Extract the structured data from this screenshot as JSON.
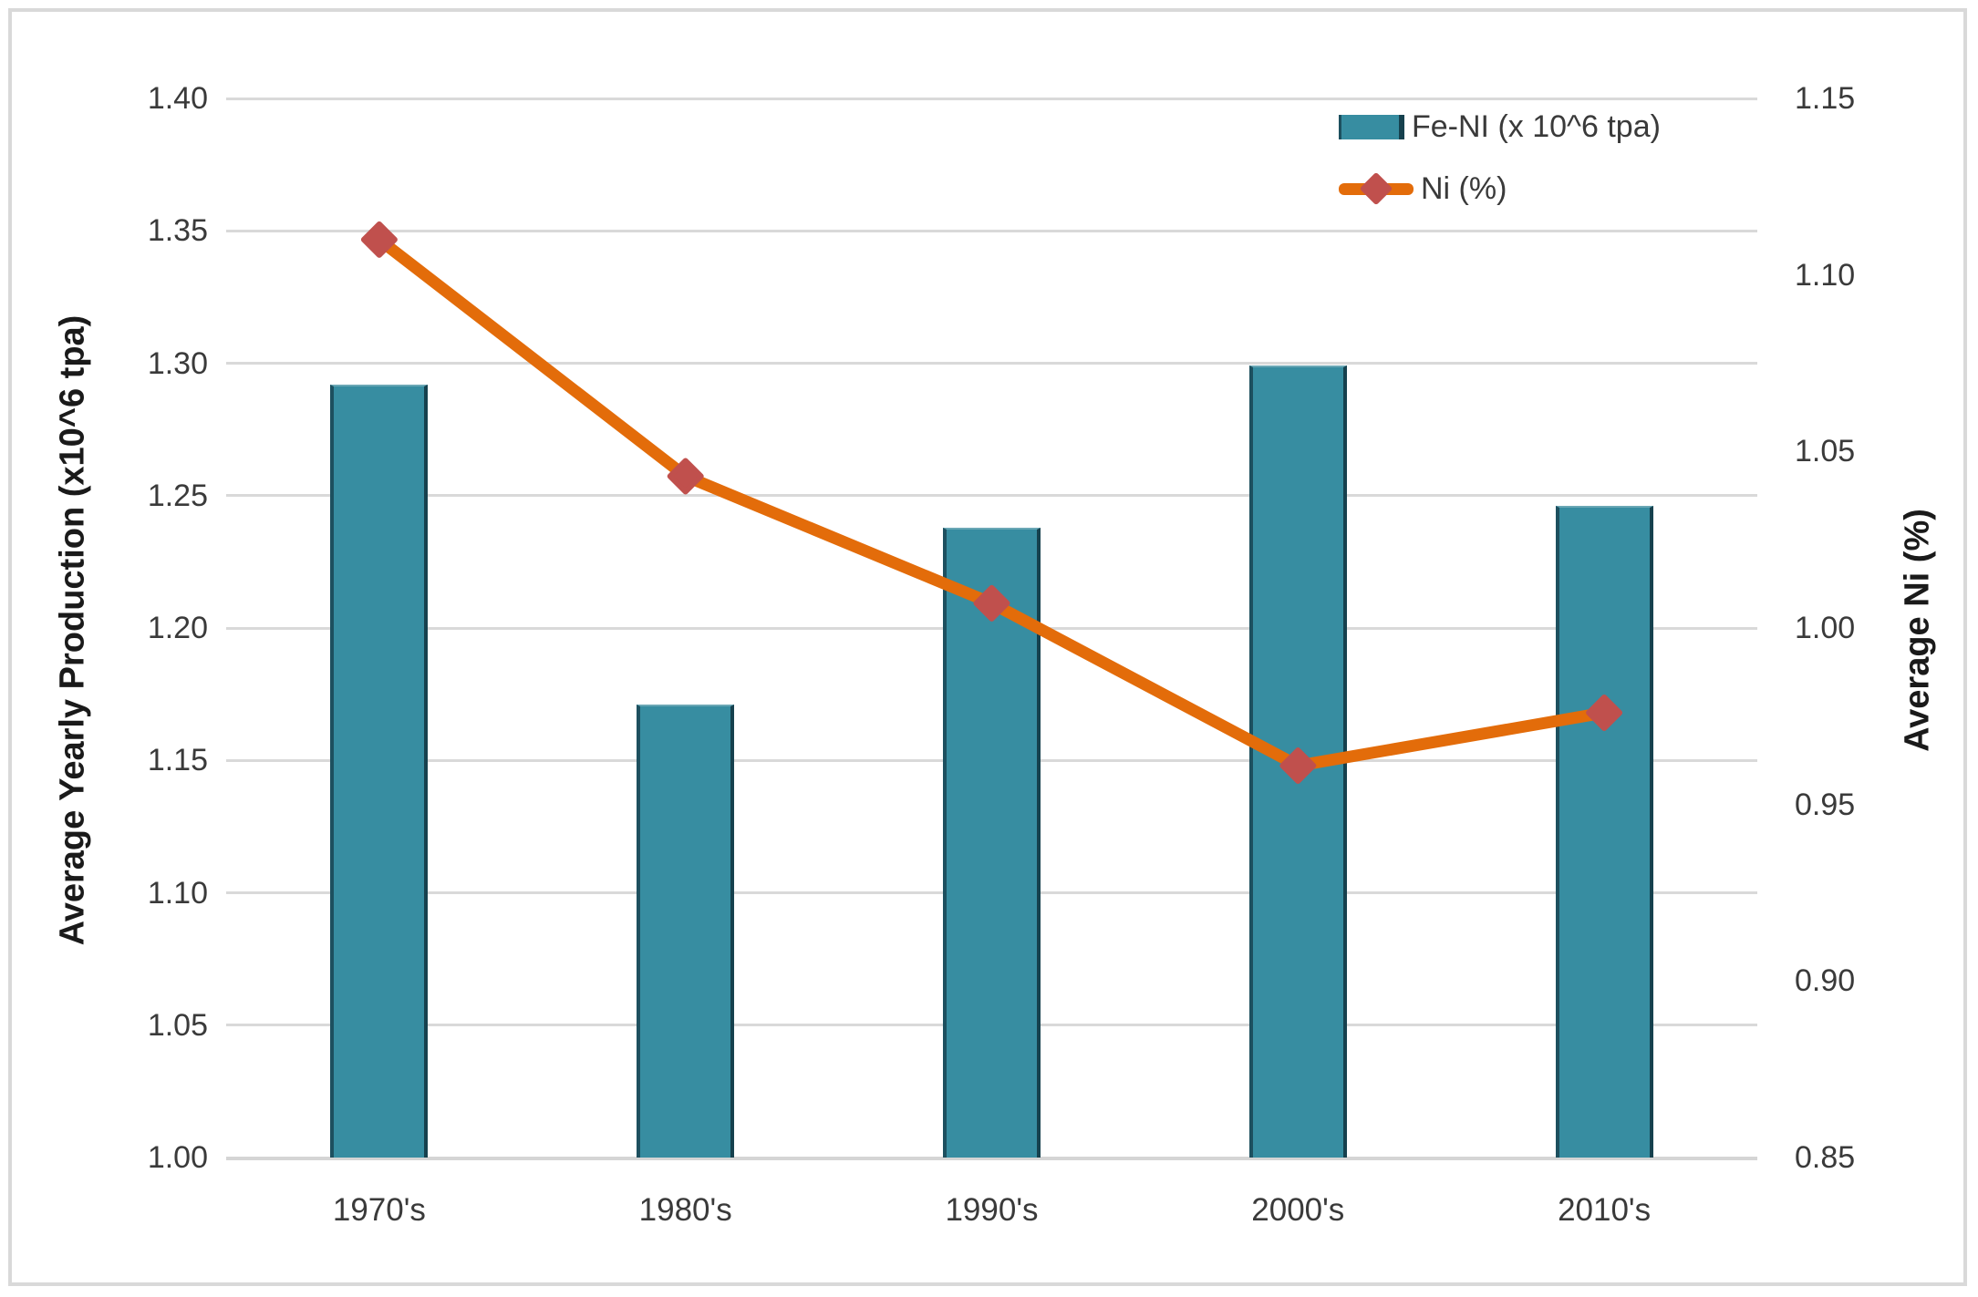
{
  "chart_data": {
    "type": "bar",
    "subtype": "combo-bar-line-dual-axis",
    "categories": [
      "1970's",
      "1980's",
      "1990's",
      "2000's",
      "2010's"
    ],
    "series": [
      {
        "name": "Fe-NI (x 10^6 tpa)",
        "type": "bar",
        "axis": "left",
        "color": "#378DA1",
        "border_color": "#16414E",
        "values": [
          1.292,
          1.171,
          1.238,
          1.299,
          1.246
        ]
      },
      {
        "name": "Ni (%)",
        "type": "line",
        "axis": "right",
        "color": "#E36C0A",
        "marker": "diamond",
        "marker_color": "#C0504D",
        "values": [
          1.11,
          1.043,
          1.007,
          0.961,
          0.976
        ]
      }
    ],
    "left_axis": {
      "title": "Average Yearly Production (x10^6 tpa)",
      "min": 1.0,
      "max": 1.4,
      "step": 0.05,
      "tick_labels": [
        "1.40",
        "1.35",
        "1.30",
        "1.25",
        "1.20",
        "1.15",
        "1.10",
        "1.05",
        "1.00"
      ]
    },
    "right_axis": {
      "title": "Average Ni (%)",
      "min": 0.85,
      "max": 1.15,
      "step": 0.05,
      "tick_labels": [
        "1.15",
        "1.10",
        "1.05",
        "1.00",
        "0.95",
        "0.90",
        "0.85"
      ]
    },
    "legend": {
      "position": "top-right-inside",
      "entries": [
        "Fe-NI (x 10^6 tpa)",
        "Ni (%)"
      ]
    },
    "grid": true,
    "gridline_color": "#D9D9D9",
    "background_color": "#FFFFFF",
    "border_color": "#D9D9D9"
  }
}
